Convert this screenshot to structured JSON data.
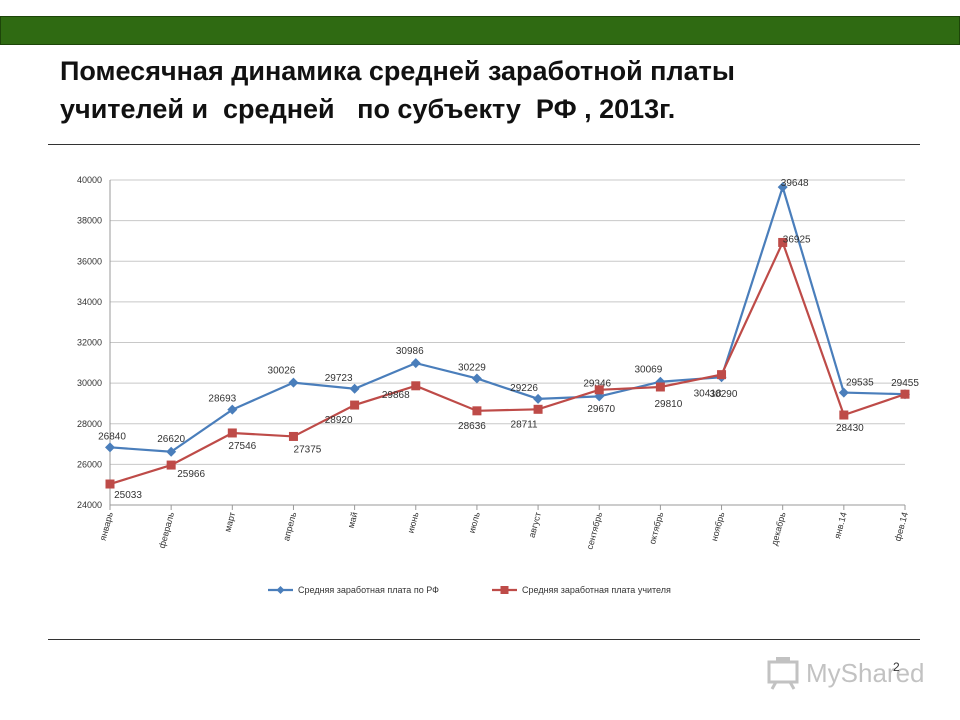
{
  "header": {
    "title_line1": "Помесячная динамика средней заработной платы",
    "title_line2": "учителей и  средней   по субъекту  РФ , 2013г."
  },
  "footer": {
    "page_number": "2",
    "watermark": "MyShared"
  },
  "colors": {
    "top_bar": "#2f6a12",
    "series_rf": "#4a7ebb",
    "series_teacher": "#be4b48"
  },
  "chart_data": {
    "type": "line",
    "categories": [
      "январь",
      "февраль",
      "март",
      "апрель",
      "май",
      "июнь",
      "июль",
      "август",
      "сентябрь",
      "октябрь",
      "ноябрь",
      "декабрь",
      "янв.14",
      "фев.14"
    ],
    "ylim": [
      24000,
      40000
    ],
    "yticks": [
      24000,
      26000,
      28000,
      30000,
      32000,
      34000,
      36000,
      38000,
      40000
    ],
    "grid": true,
    "legend_position": "bottom",
    "series": [
      {
        "name": "Средняя заработная плата по РФ",
        "marker": "diamond",
        "values": [
          26840,
          26620,
          28693,
          30026,
          29723,
          30986,
          30229,
          29226,
          29346,
          30069,
          30290,
          39648,
          29535,
          29455
        ],
        "labels": [
          "26840",
          "26620",
          "28693",
          "30026",
          "29723",
          "30986",
          "30229",
          "29226",
          "29346",
          "30069",
          "30290",
          "39648",
          "29535",
          "29455"
        ]
      },
      {
        "name": "Средняя заработная плата учителя",
        "marker": "square",
        "values": [
          25033,
          25966,
          27546,
          27375,
          28920,
          29868,
          28636,
          28711,
          29670,
          29810,
          30418,
          36925,
          28430,
          29455
        ],
        "labels": [
          "25033",
          "25966",
          "27546",
          "27375",
          "28920",
          "29868",
          "28636",
          "28711",
          "29670",
          "29810",
          "30418",
          "36925",
          "28430",
          ""
        ]
      }
    ]
  }
}
